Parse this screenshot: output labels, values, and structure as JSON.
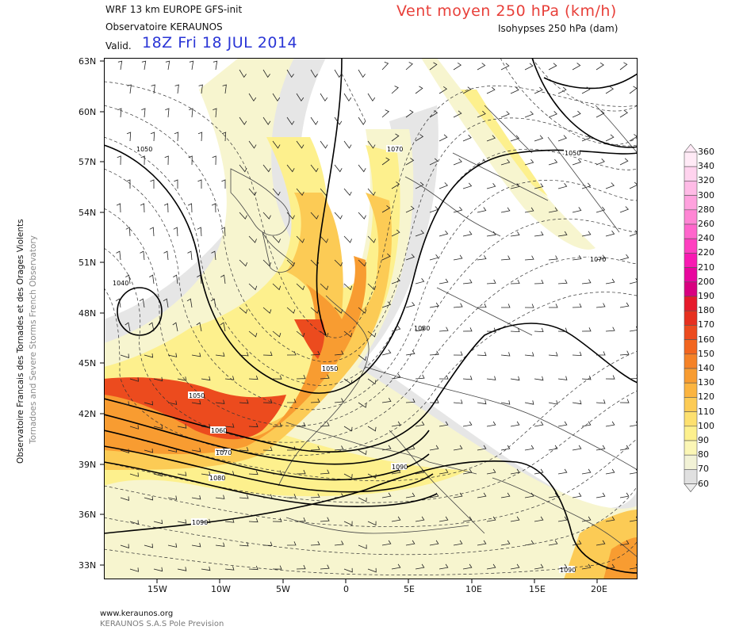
{
  "header": {
    "model": "WRF 13 km EUROPE   GFS-init",
    "observatory": "Observatoire KERAUNOS",
    "valid_prefix": "Valid.",
    "valid_time": "18Z Fri 18 JUL 2014",
    "title": "Vent moyen 250 hPa (km/h)",
    "subtitle": "Isohypses 250 hPa (dam)"
  },
  "side_labels": {
    "line1": "Observatoire Francais des Tornades et des Orages Violents",
    "line2": "Tornadoes and Severe Storms French Observatory"
  },
  "footer": {
    "url": "www.keraunos.org",
    "company": "KERAUNOS S.A.S Pole Prevision"
  },
  "axes": {
    "lat_labels": [
      "63N",
      "60N",
      "57N",
      "54N",
      "51N",
      "48N",
      "45N",
      "42N",
      "39N",
      "36N",
      "33N"
    ],
    "lon_labels": [
      "15W",
      "10W",
      "5W",
      "0",
      "5E",
      "10E",
      "15E",
      "20E"
    ]
  },
  "colorbar": {
    "levels": [
      "360",
      "340",
      "320",
      "300",
      "280",
      "260",
      "240",
      "220",
      "210",
      "200",
      "190",
      "180",
      "170",
      "160",
      "150",
      "140",
      "130",
      "120",
      "110",
      "100",
      "90",
      "80",
      "70",
      "60"
    ],
    "colors": [
      "#ffeaf6",
      "#ffd3ee",
      "#ffbbe6",
      "#ffa2de",
      "#ff86d4",
      "#ff66cc",
      "#ff3fc0",
      "#f81ab2",
      "#e8069e",
      "#d80080",
      "#e61a2b",
      "#e6301f",
      "#ec4b1e",
      "#f2651f",
      "#f58227",
      "#f89c31",
      "#fbb440",
      "#fccb55",
      "#fde06f",
      "#fdf08d",
      "#fbf6b5",
      "#f2f2d6",
      "#e0e0e0",
      "#ededed"
    ]
  },
  "map": {
    "contour_labels": [
      "1050",
      "1070",
      "1050",
      "1040",
      "1050",
      "1060",
      "1070",
      "1080",
      "1050",
      "1080",
      "1090",
      "1090",
      "1090",
      "1070"
    ]
  }
}
